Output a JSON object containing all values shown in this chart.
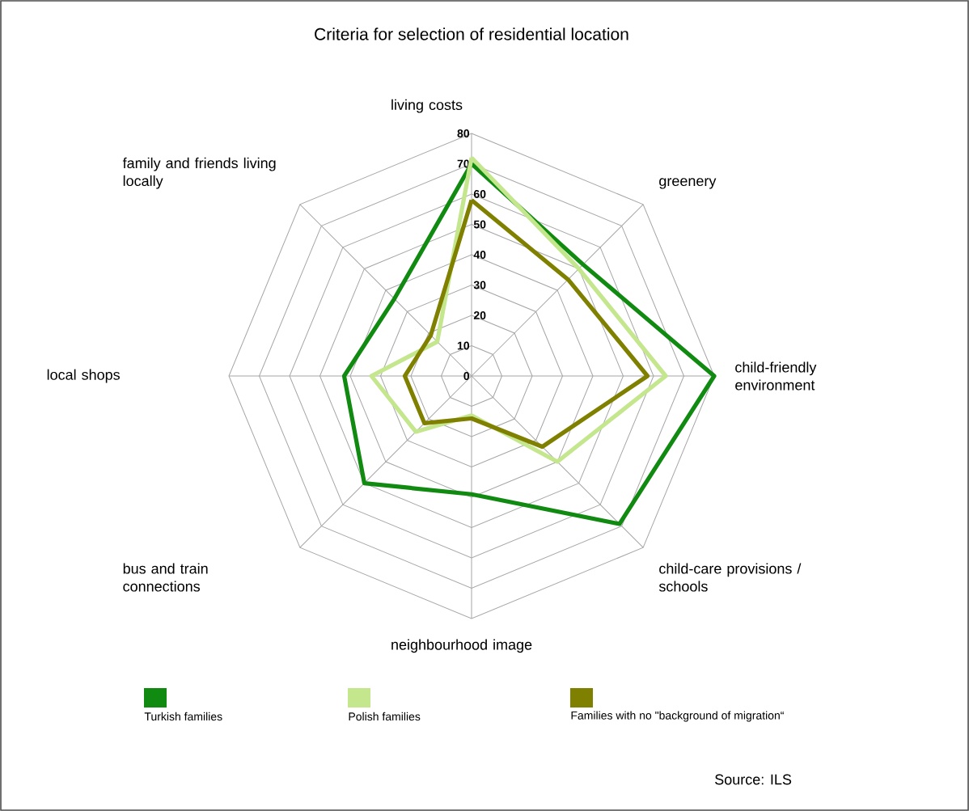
{
  "chart_data": {
    "type": "radar",
    "title": "Criteria for selection of residential location",
    "categories": [
      "living costs",
      "greenery",
      "child-friendly environment",
      "child-care provisions / schools",
      "neighbourhood image",
      "bus and train connections",
      "local shops",
      "family and friends living locally"
    ],
    "series": [
      {
        "name": "Turkish families",
        "color": "#108a10",
        "values": [
          70,
          52,
          80,
          69,
          39,
          50,
          42,
          36
        ]
      },
      {
        "name": "Polish families",
        "color": "#c4e68c",
        "values": [
          72,
          50,
          64,
          40,
          13,
          26,
          33,
          16
        ]
      },
      {
        "name": "Families with no \"background of migration“",
        "color": "#808000",
        "values": [
          58,
          45,
          58,
          33,
          14,
          22,
          22,
          19
        ]
      }
    ],
    "ylim": [
      0,
      80
    ],
    "yticks": [
      0,
      10,
      20,
      30,
      40,
      50,
      60,
      70,
      80
    ],
    "grid": true,
    "legend": "bottom",
    "annotations": [
      "Source: ILS"
    ]
  }
}
